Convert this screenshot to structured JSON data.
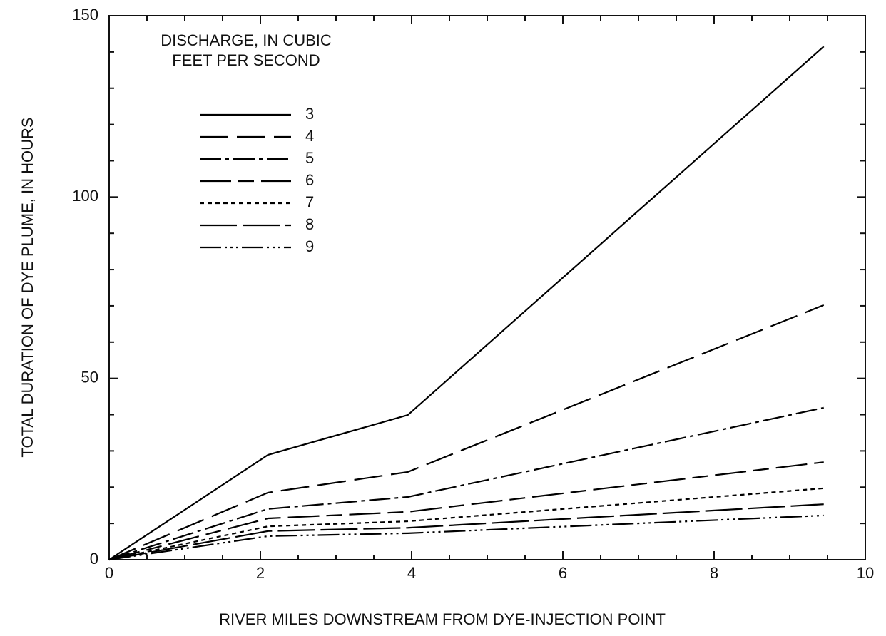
{
  "chart_data": {
    "type": "line",
    "title_lines": [
      "DISCHARGE, IN CUBIC",
      "FEET PER SECOND"
    ],
    "x_label": "RIVER MILES DOWNSTREAM FROM DYE-INJECTION POINT",
    "y_label": "TOTAL DURATION OF DYE PLUME, IN HOURS",
    "x": [
      0,
      2.1,
      3.95,
      9.45
    ],
    "series": [
      {
        "name": "3",
        "color": "#000000",
        "dash": "none",
        "values": [
          0,
          28.9,
          39.9,
          141.5
        ]
      },
      {
        "name": "4",
        "color": "#000000",
        "dash": "40 12",
        "values": [
          0,
          18.5,
          24.2,
          70.2
        ]
      },
      {
        "name": "5",
        "color": "#000000",
        "dash": "30 6 5 6",
        "values": [
          0,
          14,
          17.3,
          41.9
        ]
      },
      {
        "name": "6",
        "color": "#000000",
        "dash": "44 10 22 10",
        "values": [
          0,
          11.4,
          13.2,
          26.9
        ]
      },
      {
        "name": "7",
        "color": "#000000",
        "dash": "6 5",
        "values": [
          0,
          9.2,
          10.6,
          19.7
        ]
      },
      {
        "name": "8",
        "color": "#000000",
        "dash": "52 8",
        "values": [
          0,
          7.9,
          8.8,
          15.3
        ]
      },
      {
        "name": "9",
        "color": "#000000",
        "dash": "30 5 3 5 3 5 3 5",
        "values": [
          0,
          6.5,
          7.3,
          12.2
        ]
      }
    ],
    "xlim": [
      0,
      10
    ],
    "ylim": [
      0,
      150
    ],
    "xticks": [
      0,
      2,
      4,
      6,
      8,
      10
    ],
    "yticks": [
      0,
      50,
      100,
      150
    ],
    "xminorticks": [
      0.5,
      1,
      1.5,
      2.5,
      3,
      3.5,
      4.5,
      5,
      5.5,
      6.5,
      7,
      7.5,
      8.5,
      9,
      9.5
    ],
    "yminorticks": [
      10,
      20,
      30,
      40,
      60,
      70,
      80,
      90,
      110,
      120,
      130,
      140
    ],
    "grid": false,
    "legend": "upper left"
  }
}
